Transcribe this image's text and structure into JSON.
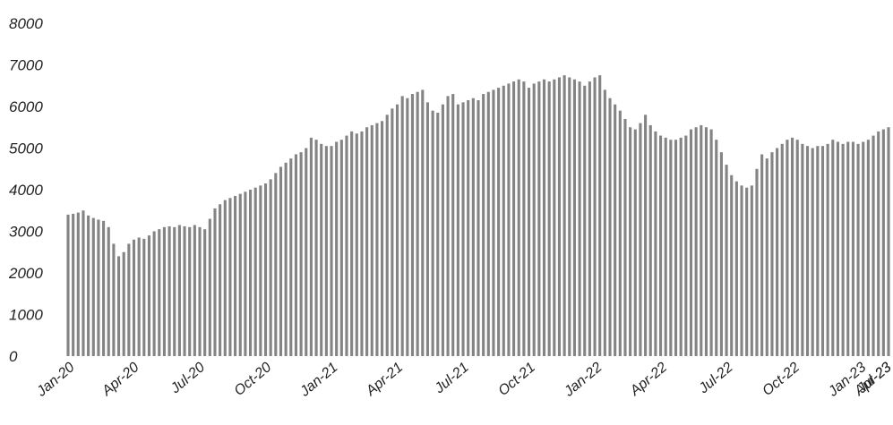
{
  "chart_data": {
    "type": "bar",
    "title": "",
    "xlabel": "",
    "ylabel": "",
    "ylim": [
      0,
      8000
    ],
    "y_ticks": [
      "0",
      "1000",
      "2000",
      "3000",
      "4000",
      "5000",
      "6000",
      "7000",
      "8000"
    ],
    "x_tick_labels": [
      "Jan-20",
      "Apr-20",
      "Jul-20",
      "Oct-20",
      "Jan-21",
      "Apr-21",
      "Jul-21",
      "Oct-21",
      "Jan-22",
      "Apr-22",
      "Jul-22",
      "Oct-22",
      "Jan-23",
      "Apr-23",
      "Jul-23"
    ],
    "grid": false,
    "legend": "none",
    "bar_color": "#555555",
    "x_start": "2020-01-03",
    "frequency": "weekly",
    "values": [
      3400,
      3420,
      3450,
      3500,
      3380,
      3320,
      3280,
      3250,
      3100,
      2700,
      2400,
      2500,
      2700,
      2800,
      2850,
      2820,
      2900,
      3000,
      3050,
      3100,
      3120,
      3100,
      3150,
      3120,
      3100,
      3150,
      3100,
      3050,
      3300,
      3550,
      3650,
      3750,
      3800,
      3850,
      3900,
      3950,
      4000,
      4050,
      4100,
      4150,
      4250,
      4400,
      4550,
      4650,
      4750,
      4850,
      4900,
      5000,
      5250,
      5200,
      5100,
      5050,
      5050,
      5150,
      5200,
      5300,
      5400,
      5350,
      5400,
      5500,
      5550,
      5600,
      5650,
      5800,
      5950,
      6050,
      6250,
      6200,
      6300,
      6350,
      6400,
      6100,
      5900,
      5850,
      6050,
      6250,
      6300,
      6050,
      6100,
      6150,
      6200,
      6150,
      6300,
      6350,
      6400,
      6450,
      6500,
      6550,
      6600,
      6650,
      6600,
      6450,
      6550,
      6600,
      6650,
      6600,
      6650,
      6700,
      6750,
      6700,
      6650,
      6600,
      6500,
      6600,
      6700,
      6750,
      6400,
      6200,
      6050,
      5900,
      5700,
      5500,
      5450,
      5600,
      5800,
      5550,
      5400,
      5300,
      5250,
      5200,
      5200,
      5250,
      5300,
      5450,
      5500,
      5550,
      5500,
      5450,
      5200,
      4900,
      4600,
      4350,
      4200,
      4100,
      4050,
      4100,
      4500,
      4850,
      4750,
      4900,
      5000,
      5100,
      5200,
      5250,
      5200,
      5100,
      5050,
      5000,
      5050,
      5050,
      5100,
      5200,
      5150,
      5100,
      5150,
      5150,
      5100,
      5150,
      5200,
      5300,
      5400,
      5450,
      5500
    ]
  }
}
